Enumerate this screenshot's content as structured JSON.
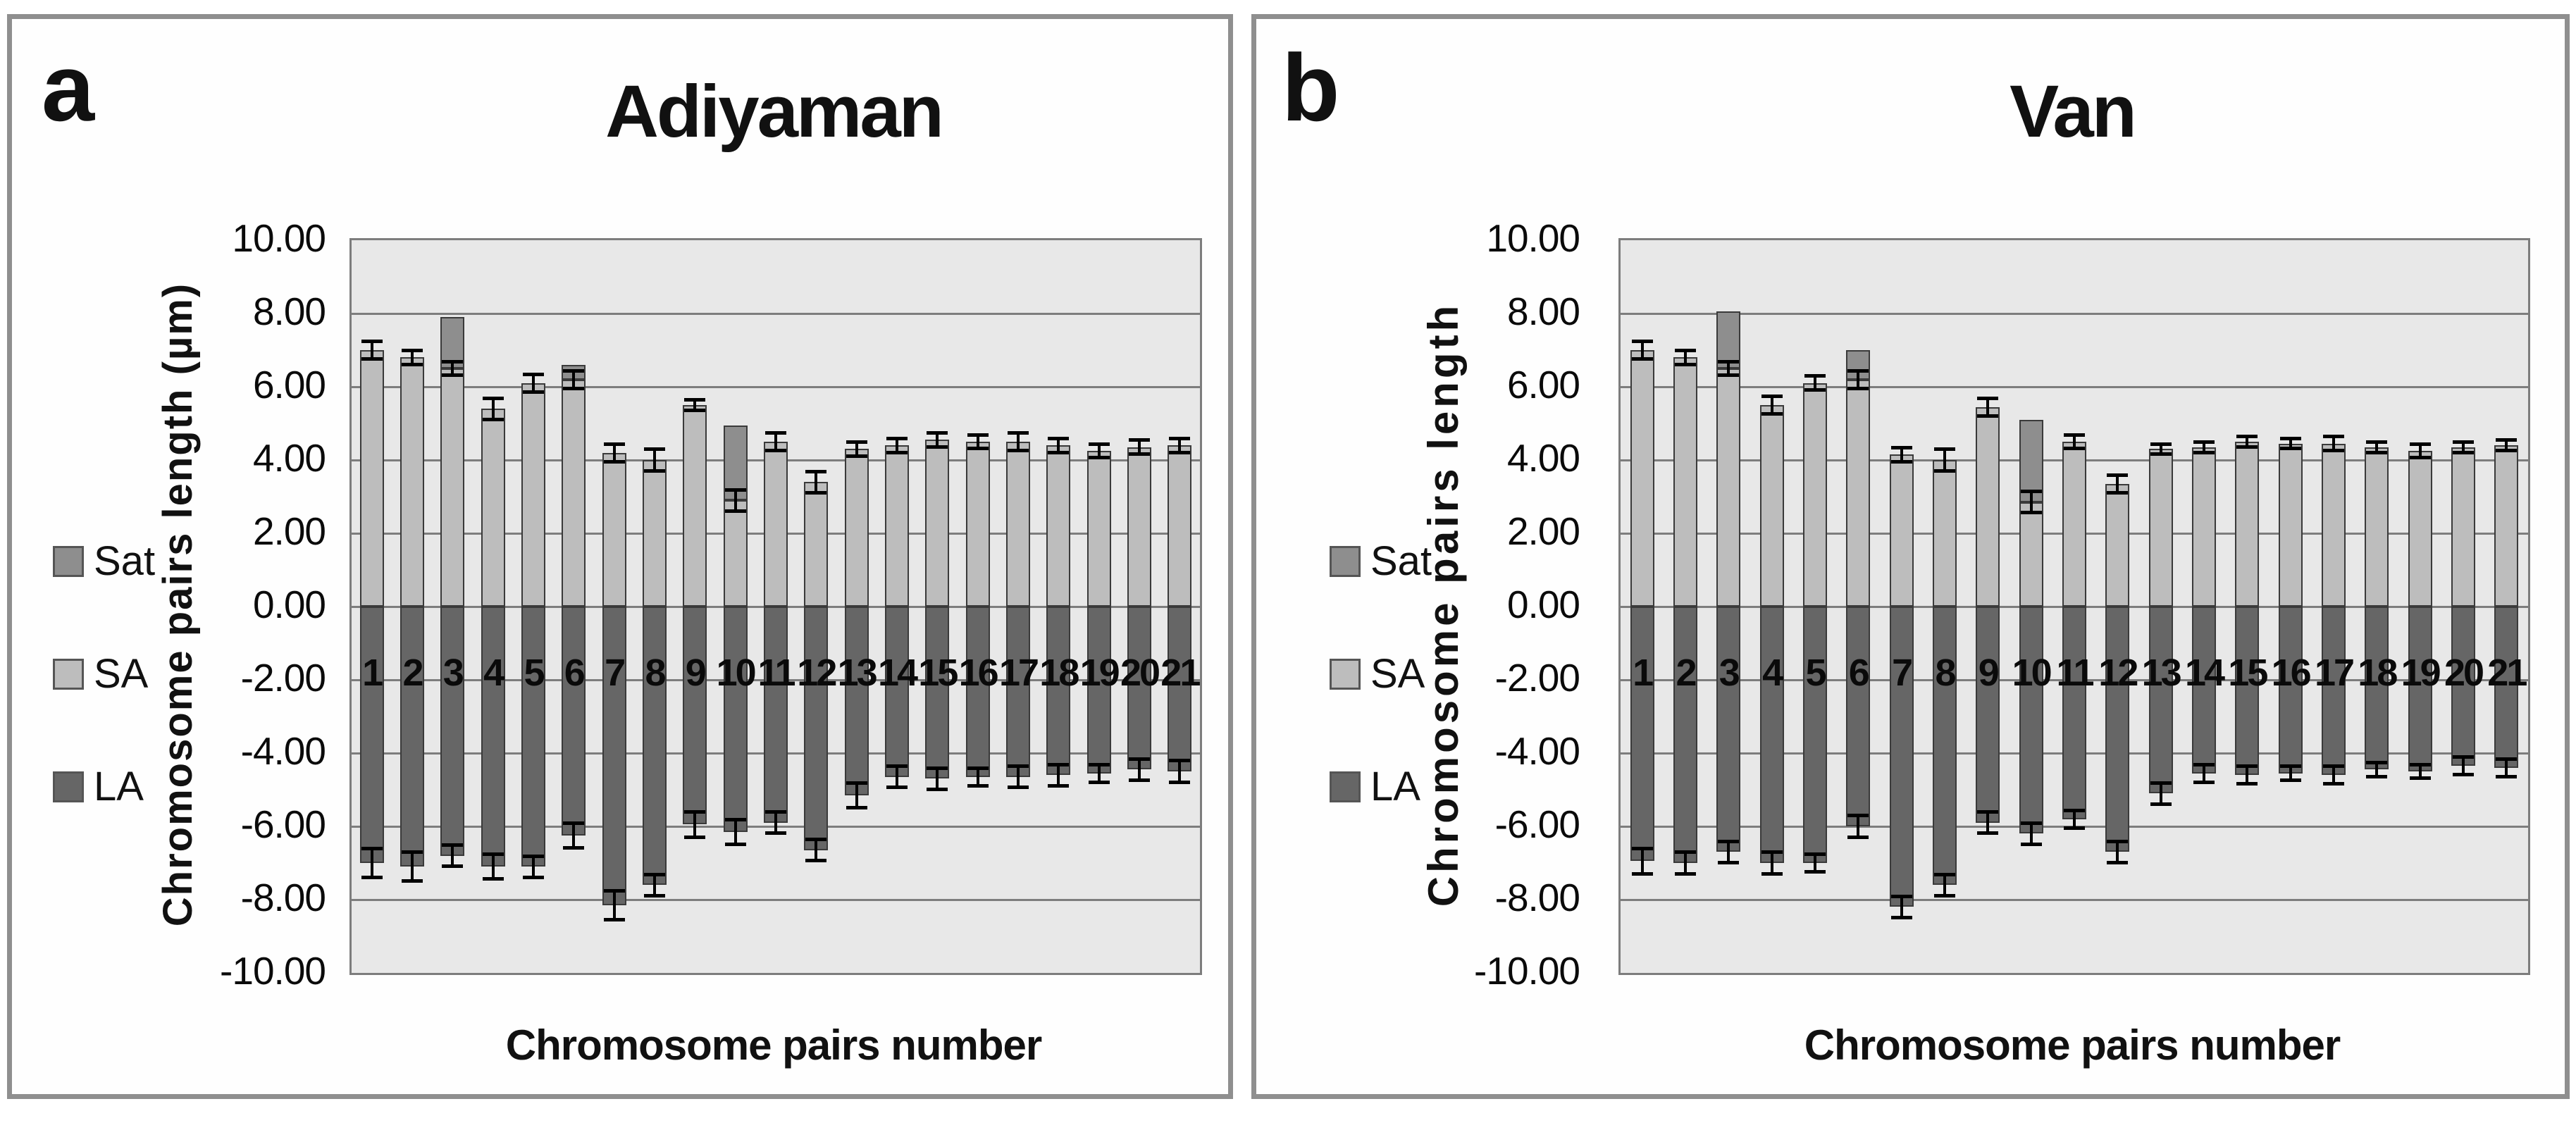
{
  "figure": {
    "panels": [
      {
        "corner_label": "a",
        "title": "Adiyaman",
        "y_axis_title": "Chromosome pairs length (µm)",
        "x_axis_title": "Chromosome pairs number",
        "legend": [
          {
            "label": "Sat",
            "color": "#8e8e8e"
          },
          {
            "label": "SA",
            "color": "#bdbdbd"
          },
          {
            "label": "LA",
            "color": "#666666"
          }
        ]
      },
      {
        "corner_label": "b",
        "title": "Van",
        "y_axis_title": "Chromosome pairs length",
        "x_axis_title": "Chromosome pairs number",
        "legend": [
          {
            "label": "Sat",
            "color": "#8e8e8e"
          },
          {
            "label": "SA",
            "color": "#bdbdbd"
          },
          {
            "label": "LA",
            "color": "#666666"
          }
        ]
      }
    ]
  },
  "chart_data": [
    {
      "type": "bar",
      "subtype": "diverging-stacked-with-error-bars",
      "title": "Adiyaman",
      "xlabel": "Chromosome pairs number",
      "ylabel": "Chromosome pairs length (µm)",
      "ylim": [
        -10,
        10
      ],
      "ytick_step": 2,
      "ytick_labels": [
        "10.00",
        "8.00",
        "6.00",
        "4.00",
        "2.00",
        "0.00",
        "-2.00",
        "-4.00",
        "-6.00",
        "-8.00",
        "-10.00"
      ],
      "grid": true,
      "legend_position": "left",
      "categories": [
        "1",
        "2",
        "3",
        "4",
        "5",
        "6",
        "7",
        "8",
        "9",
        "10",
        "11",
        "12",
        "13",
        "14",
        "15",
        "16",
        "17",
        "18",
        "19",
        "20",
        "21"
      ],
      "series": [
        {
          "name": "SA",
          "direction": "up",
          "values": [
            7.0,
            6.8,
            6.5,
            5.4,
            6.1,
            6.2,
            4.2,
            4.0,
            5.5,
            2.9,
            4.5,
            3.4,
            4.3,
            4.4,
            4.55,
            4.5,
            4.5,
            4.4,
            4.25,
            4.35,
            4.4
          ],
          "errors": [
            0.25,
            0.2,
            0.2,
            0.3,
            0.25,
            0.25,
            0.25,
            0.3,
            0.15,
            0.3,
            0.25,
            0.3,
            0.2,
            0.2,
            0.2,
            0.2,
            0.25,
            0.2,
            0.2,
            0.2,
            0.2
          ]
        },
        {
          "name": "Sat",
          "direction": "up-stacked-on-SA",
          "values": [
            0,
            0,
            1.4,
            0,
            0,
            0.4,
            0,
            0,
            0,
            2.05,
            0,
            0,
            0,
            0,
            0,
            0,
            0,
            0,
            0,
            0,
            0
          ]
        },
        {
          "name": "LA",
          "direction": "down",
          "values": [
            -7.0,
            -7.1,
            -6.8,
            -7.1,
            -7.1,
            -6.25,
            -8.15,
            -7.6,
            -5.95,
            -6.15,
            -5.9,
            -6.65,
            -5.15,
            -4.65,
            -4.7,
            -4.65,
            -4.65,
            -4.6,
            -4.55,
            -4.45,
            -4.5
          ],
          "errors": [
            0.4,
            0.4,
            0.3,
            0.35,
            0.3,
            0.35,
            0.4,
            0.3,
            0.35,
            0.35,
            0.3,
            0.3,
            0.35,
            0.3,
            0.3,
            0.25,
            0.3,
            0.3,
            0.25,
            0.3,
            0.3
          ]
        }
      ]
    },
    {
      "type": "bar",
      "subtype": "diverging-stacked-with-error-bars",
      "title": "Van",
      "xlabel": "Chromosome pairs number",
      "ylabel": "Chromosome pairs length",
      "ylim": [
        -10,
        10
      ],
      "ytick_step": 2,
      "ytick_labels": [
        "10.00",
        "8.00",
        "6.00",
        "4.00",
        "2.00",
        "0.00",
        "-2.00",
        "-4.00",
        "-6.00",
        "-8.00",
        "-10.00"
      ],
      "grid": true,
      "legend_position": "left",
      "categories": [
        "1",
        "2",
        "3",
        "4",
        "5",
        "6",
        "7",
        "8",
        "9",
        "10",
        "11",
        "12",
        "13",
        "14",
        "15",
        "16",
        "17",
        "18",
        "19",
        "20",
        "21"
      ],
      "series": [
        {
          "name": "SA",
          "direction": "up",
          "values": [
            7.0,
            6.8,
            6.5,
            5.5,
            6.1,
            6.2,
            4.15,
            4.0,
            5.45,
            2.85,
            4.5,
            3.35,
            4.3,
            4.35,
            4.5,
            4.45,
            4.45,
            4.35,
            4.25,
            4.35,
            4.4
          ],
          "errors": [
            0.25,
            0.2,
            0.2,
            0.25,
            0.2,
            0.25,
            0.2,
            0.3,
            0.25,
            0.3,
            0.2,
            0.25,
            0.15,
            0.15,
            0.15,
            0.15,
            0.2,
            0.15,
            0.2,
            0.15,
            0.15
          ]
        },
        {
          "name": "Sat",
          "direction": "up-stacked-on-SA",
          "values": [
            0,
            0,
            1.55,
            0,
            0,
            0.8,
            0,
            0,
            0,
            2.25,
            0,
            0,
            0,
            0,
            0,
            0,
            0,
            0,
            0,
            0,
            0
          ]
        },
        {
          "name": "LA",
          "direction": "down",
          "values": [
            -6.95,
            -7.0,
            -6.7,
            -7.0,
            -7.0,
            -6.0,
            -8.2,
            -7.6,
            -5.9,
            -6.2,
            -5.8,
            -6.7,
            -5.1,
            -4.55,
            -4.6,
            -4.55,
            -4.6,
            -4.45,
            -4.5,
            -4.35,
            -4.4
          ],
          "errors": [
            0.35,
            0.3,
            0.3,
            0.3,
            0.25,
            0.3,
            0.3,
            0.3,
            0.3,
            0.3,
            0.25,
            0.3,
            0.3,
            0.25,
            0.25,
            0.2,
            0.25,
            0.2,
            0.2,
            0.25,
            0.25
          ]
        }
      ]
    }
  ],
  "colors": {
    "plot_background": "#e8e8e8",
    "gridline": "#7d7d7d",
    "bar_border": "#3a3a3a",
    "panel_border": "#8f8f8f",
    "error_bar": "#000000",
    "sat": "#8e8e8e",
    "sa": "#bdbdbd",
    "la": "#666666"
  }
}
